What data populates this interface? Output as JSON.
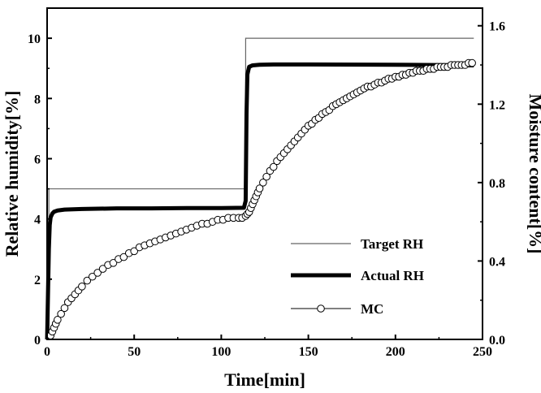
{
  "chart_data": {
    "type": "line",
    "title": "",
    "xlabel": "Time[min]",
    "ylabel_left": "Relative humidity[%]",
    "ylabel_right": "Moisture content[%]",
    "xlim": [
      0,
      250
    ],
    "ylim_left": [
      0,
      11
    ],
    "ylim_right": [
      0,
      1.69
    ],
    "xticks": [
      0,
      50,
      100,
      150,
      200,
      250
    ],
    "yticks_left": [
      0,
      2,
      4,
      6,
      8,
      10
    ],
    "yticks_right": [
      0.0,
      0.4,
      0.8,
      1.2,
      1.6
    ],
    "xtick_labels": [
      "0",
      "50",
      "100",
      "150",
      "200",
      "250"
    ],
    "ytick_labels_left": [
      "0",
      "2",
      "4",
      "6",
      "8",
      "10"
    ],
    "ytick_labels_right": [
      "0.0",
      "0.4",
      "0.8",
      "1.2",
      "1.6"
    ],
    "grid": false,
    "legend_position": "bottom-right",
    "series": [
      {
        "name": "Target RH",
        "axis": "left",
        "style": "thin-line",
        "color": "#666666",
        "x": [
          0,
          1,
          1,
          114,
          114,
          245
        ],
        "y": [
          0,
          0,
          5,
          5,
          10,
          10
        ]
      },
      {
        "name": "Actual RH",
        "axis": "left",
        "style": "thick-line",
        "color": "#000000",
        "x": [
          0,
          0.5,
          1,
          1.5,
          2,
          3,
          4,
          6,
          10,
          20,
          40,
          60,
          80,
          100,
          113,
          114,
          114.5,
          115,
          116,
          118,
          122,
          130,
          150,
          200,
          245
        ],
        "y": [
          0,
          1.5,
          3.0,
          3.8,
          4.05,
          4.18,
          4.24,
          4.28,
          4.31,
          4.33,
          4.35,
          4.35,
          4.36,
          4.36,
          4.37,
          4.6,
          7.5,
          8.8,
          9.05,
          9.1,
          9.12,
          9.13,
          9.13,
          9.12,
          9.1
        ]
      },
      {
        "name": "MC",
        "axis": "right",
        "style": "line-with-open-circles",
        "color": "#000000",
        "x": [
          2,
          3,
          4,
          5,
          6,
          8,
          10,
          12,
          14,
          16,
          18,
          20,
          23,
          26,
          29,
          32,
          35,
          38,
          41,
          44,
          47,
          50,
          53,
          56,
          59,
          62,
          65,
          68,
          71,
          74,
          77,
          80,
          83,
          86,
          89,
          92,
          95,
          98,
          101,
          104,
          107,
          110,
          112,
          114,
          115,
          116,
          117,
          118,
          119,
          120,
          121,
          122,
          124,
          126,
          128,
          130,
          132,
          134,
          136,
          138,
          140,
          142,
          144,
          146,
          148,
          150,
          152,
          154,
          156,
          158,
          160,
          162,
          164,
          166,
          168,
          170,
          172,
          174,
          176,
          178,
          180,
          182,
          184,
          186,
          188,
          190,
          192,
          194,
          196,
          198,
          200,
          202,
          204,
          206,
          208,
          210,
          212,
          214,
          216,
          218,
          220,
          222,
          224,
          226,
          228,
          230,
          232,
          234,
          236,
          238,
          240,
          242,
          244
        ],
        "y": [
          0.02,
          0.04,
          0.06,
          0.08,
          0.1,
          0.13,
          0.16,
          0.19,
          0.21,
          0.23,
          0.25,
          0.27,
          0.3,
          0.32,
          0.34,
          0.36,
          0.38,
          0.39,
          0.41,
          0.42,
          0.44,
          0.45,
          0.47,
          0.48,
          0.49,
          0.5,
          0.51,
          0.52,
          0.53,
          0.54,
          0.55,
          0.56,
          0.57,
          0.58,
          0.59,
          0.59,
          0.6,
          0.61,
          0.61,
          0.62,
          0.62,
          0.62,
          0.62,
          0.63,
          0.64,
          0.65,
          0.67,
          0.69,
          0.71,
          0.73,
          0.75,
          0.77,
          0.8,
          0.83,
          0.86,
          0.88,
          0.91,
          0.93,
          0.95,
          0.97,
          0.99,
          1.01,
          1.03,
          1.05,
          1.07,
          1.09,
          1.1,
          1.12,
          1.13,
          1.15,
          1.16,
          1.17,
          1.19,
          1.2,
          1.21,
          1.22,
          1.23,
          1.24,
          1.25,
          1.26,
          1.27,
          1.28,
          1.29,
          1.29,
          1.3,
          1.31,
          1.31,
          1.32,
          1.33,
          1.33,
          1.34,
          1.34,
          1.35,
          1.35,
          1.36,
          1.36,
          1.37,
          1.37,
          1.37,
          1.38,
          1.38,
          1.38,
          1.39,
          1.39,
          1.39,
          1.39,
          1.4,
          1.4,
          1.4,
          1.4,
          1.4,
          1.41,
          1.41
        ]
      }
    ]
  }
}
